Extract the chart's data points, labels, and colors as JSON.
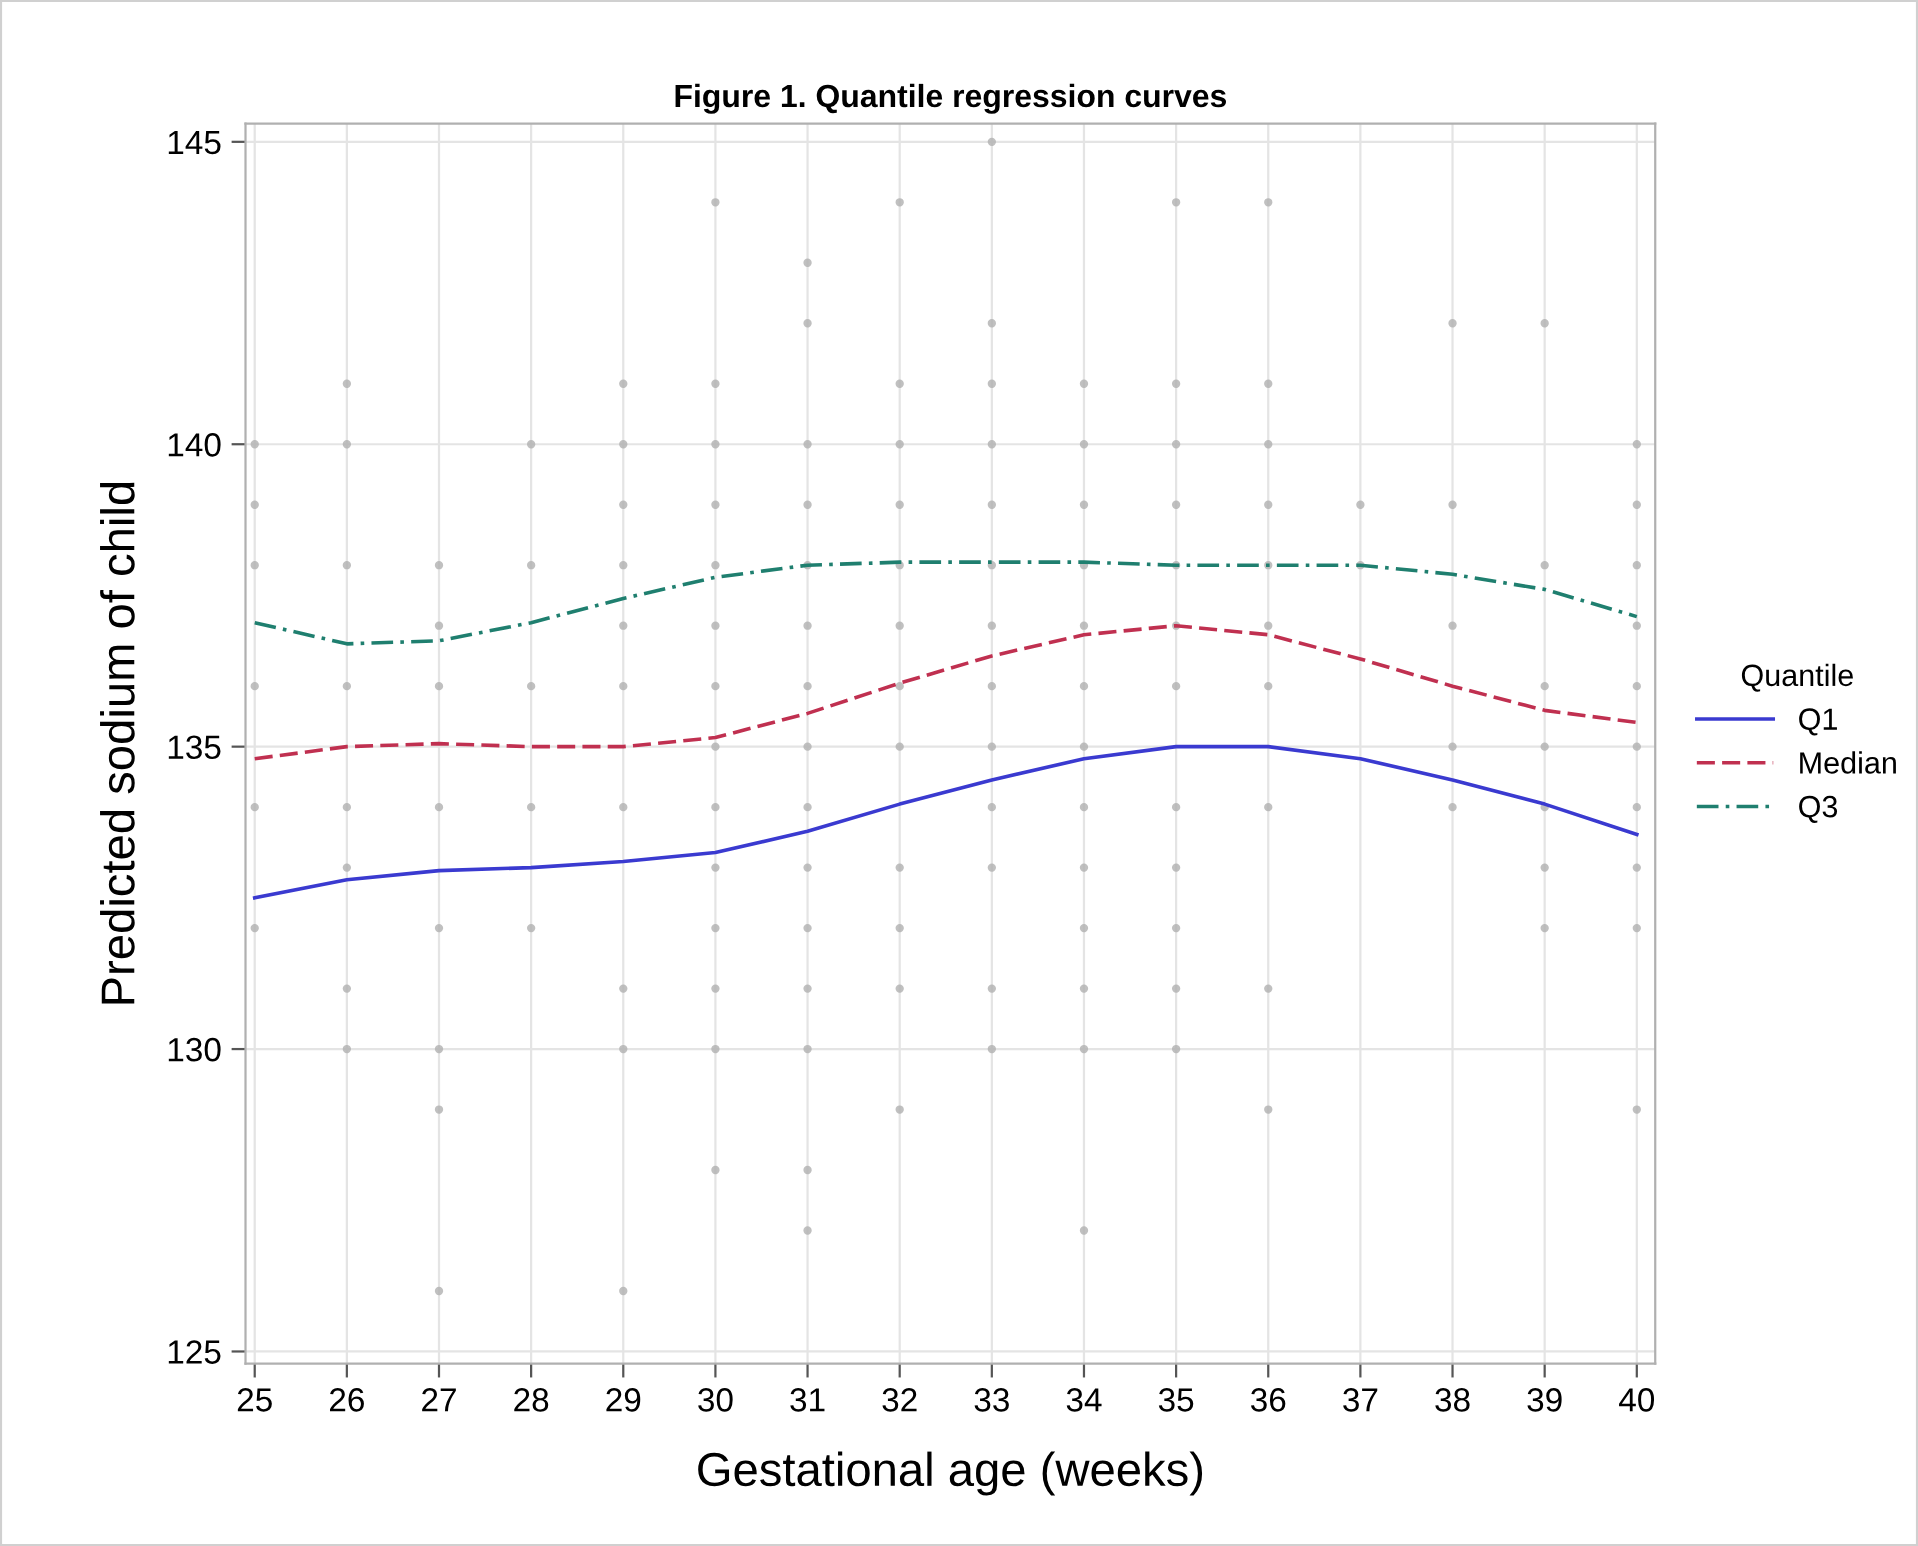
{
  "chart_data": {
    "type": "line",
    "title": "Figure 1. Quantile regression curves",
    "xlabel": "Gestational age (weeks)",
    "ylabel": "Predicted sodium of child",
    "legend_title": "Quantile",
    "legend": "right",
    "x": [
      25,
      26,
      27,
      28,
      29,
      30,
      31,
      32,
      33,
      34,
      35,
      36,
      37,
      38,
      39,
      40
    ],
    "series": [
      {
        "type": "scatter",
        "color": "#b0b0b0",
        "marker": "circle",
        "x": [
          30,
          32,
          31,
          31,
          26,
          29,
          30,
          32,
          25,
          26,
          28,
          29,
          30,
          31,
          32,
          25,
          29,
          30,
          31,
          32,
          25,
          26,
          27,
          28,
          29,
          30,
          31,
          32,
          27,
          29,
          30,
          31,
          32,
          25,
          26,
          27,
          28,
          29,
          30,
          31,
          32,
          30,
          31,
          32,
          33,
          35,
          36,
          33,
          38,
          39,
          33,
          34,
          35,
          36,
          33,
          34,
          35,
          36,
          40,
          33,
          34,
          35,
          36,
          37,
          38,
          40,
          33,
          34,
          35,
          36,
          37,
          39,
          40,
          33,
          34,
          35,
          36,
          38,
          40,
          33,
          34,
          35,
          36,
          39,
          40,
          33,
          34,
          38,
          39,
          40,
          25,
          26,
          27,
          28,
          29,
          30,
          31,
          33,
          34,
          35,
          36,
          38,
          39,
          40,
          26,
          30,
          31,
          32,
          33,
          34,
          35,
          39,
          40,
          25,
          27,
          28,
          30,
          31,
          32,
          34,
          35,
          39,
          40,
          26,
          29,
          30,
          31,
          32,
          33,
          34,
          35,
          36,
          26,
          27,
          29,
          30,
          31,
          33,
          34,
          35,
          27,
          32,
          36,
          40,
          30,
          31,
          31,
          34,
          27,
          29
        ],
        "values": [
          144,
          144,
          143,
          142,
          141,
          141,
          141,
          141,
          140,
          140,
          140,
          140,
          140,
          140,
          140,
          139,
          139,
          139,
          139,
          139,
          138,
          138,
          138,
          138,
          138,
          138,
          138,
          138,
          137,
          137,
          137,
          137,
          137,
          136,
          136,
          136,
          136,
          136,
          136,
          136,
          136,
          135,
          135,
          135,
          145,
          144,
          144,
          142,
          142,
          142,
          141,
          141,
          141,
          141,
          140,
          140,
          140,
          140,
          140,
          139,
          139,
          139,
          139,
          139,
          139,
          139,
          138,
          138,
          138,
          138,
          138,
          138,
          138,
          137,
          137,
          137,
          137,
          137,
          137,
          136,
          136,
          136,
          136,
          136,
          136,
          135,
          135,
          135,
          135,
          135,
          134,
          134,
          134,
          134,
          134,
          134,
          134,
          134,
          134,
          134,
          134,
          134,
          134,
          134,
          133,
          133,
          133,
          133,
          133,
          133,
          133,
          133,
          133,
          132,
          132,
          132,
          132,
          132,
          132,
          132,
          132,
          132,
          132,
          131,
          131,
          131,
          131,
          131,
          131,
          131,
          131,
          131,
          130,
          130,
          130,
          130,
          130,
          130,
          130,
          130,
          129,
          129,
          129,
          129,
          128,
          128,
          127,
          127,
          126,
          126
        ]
      },
      {
        "name": "Q1",
        "color": "#3a3ad0",
        "line_style": "solid",
        "values": [
          132.5,
          132.8,
          132.95,
          133.0,
          133.1,
          133.25,
          133.6,
          134.05,
          134.45,
          134.8,
          135.0,
          135.0,
          134.8,
          134.45,
          134.05,
          133.55
        ]
      },
      {
        "name": "Median",
        "color": "#c03050",
        "line_style": "dashed",
        "values": [
          134.8,
          135.0,
          135.05,
          135.0,
          135.0,
          135.15,
          135.55,
          136.05,
          136.5,
          136.85,
          137.0,
          136.85,
          136.45,
          136.0,
          135.6,
          135.4
        ]
      },
      {
        "name": "Q3",
        "color": "#1f7f6f",
        "line_style": "dashdot",
        "values": [
          137.05,
          136.7,
          136.75,
          137.05,
          137.45,
          137.8,
          138.0,
          138.05,
          138.05,
          138.05,
          138.0,
          138.0,
          138.0,
          137.85,
          137.6,
          137.15
        ]
      }
    ],
    "xlim": [
      24.9,
      40.2
    ],
    "xticks": [
      25,
      26,
      27,
      28,
      29,
      30,
      31,
      32,
      33,
      34,
      35,
      36,
      37,
      38,
      39,
      40
    ],
    "ylim": [
      124.8,
      145.3
    ],
    "yticks": [
      125,
      130,
      135,
      140,
      145
    ],
    "grid": true
  }
}
